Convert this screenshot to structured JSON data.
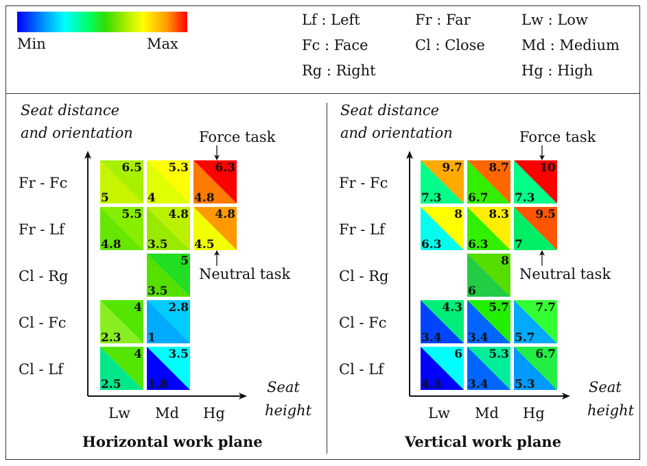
{
  "legend": {
    "min_label": "Min",
    "max_label": "Max",
    "colors": [
      "#0000ff",
      "#00ffff",
      "#00ff66",
      "#ffff00",
      "#ff0000"
    ],
    "abbreviations": [
      {
        "text": "Lf : Left"
      },
      {
        "text": "Fc : Face"
      },
      {
        "text": "Rg : Right"
      },
      {
        "text": "Fr : Far"
      },
      {
        "text": "Cl : Close"
      },
      {
        "text": "Lw : Low"
      },
      {
        "text": "Md : Medium"
      },
      {
        "text": "Hg : High"
      }
    ]
  },
  "common": {
    "y_axis_line1": "Seat distance",
    "y_axis_line2": "and orientation",
    "x_axis_line1": "Seat",
    "x_axis_line2": "height",
    "rows": [
      "Fr - Fc",
      "Fr - Lf",
      "Cl - Rg",
      "Cl - Fc",
      "Cl - Lf"
    ],
    "cols": [
      "Lw",
      "Md",
      "Hg"
    ],
    "force_task": "Force task",
    "neutral_task": "Neutral task"
  },
  "panels": [
    {
      "title": "Horizontal work plane",
      "cells": [
        {
          "row": 0,
          "col": 0,
          "force": "6.5",
          "neutral": "5",
          "force_color": "#a8f000",
          "neutral_color": "#c8f400"
        },
        {
          "row": 0,
          "col": 1,
          "force": "5.3",
          "neutral": "4",
          "force_color": "#ffff00",
          "neutral_color": "#e0ff00"
        },
        {
          "row": 0,
          "col": 2,
          "force": "6.3",
          "neutral": "4.8",
          "force_color": "#ff0000",
          "neutral_color": "#ff7a00"
        },
        {
          "row": 1,
          "col": 0,
          "force": "5.5",
          "neutral": "4.8",
          "force_color": "#88ee00",
          "neutral_color": "#66e600"
        },
        {
          "row": 1,
          "col": 1,
          "force": "4.8",
          "neutral": "3.5",
          "force_color": "#bbf000",
          "neutral_color": "#99ea00"
        },
        {
          "row": 1,
          "col": 2,
          "force": "4.8",
          "neutral": "4.5",
          "force_color": "#ff9900",
          "neutral_color": "#f2ff00"
        },
        {
          "row": 2,
          "col": 1,
          "force": "5",
          "neutral": "3.5",
          "force_color": "#22dd22",
          "neutral_color": "#55e000"
        },
        {
          "row": 3,
          "col": 0,
          "force": "4",
          "neutral": "2.3",
          "force_color": "#55e600",
          "neutral_color": "#88ee22"
        },
        {
          "row": 3,
          "col": 1,
          "force": "2.8",
          "neutral": "1",
          "force_color": "#00ccff",
          "neutral_color": "#00aaff"
        },
        {
          "row": 4,
          "col": 0,
          "force": "4",
          "neutral": "2.5",
          "force_color": "#55e600",
          "neutral_color": "#00e88a"
        },
        {
          "row": 4,
          "col": 1,
          "force": "3.5",
          "neutral": "1.8",
          "force_color": "#00ffff",
          "neutral_color": "#0000ff"
        }
      ]
    },
    {
      "title": "Vertical work plane",
      "cells": [
        {
          "row": 0,
          "col": 0,
          "force": "9.7",
          "neutral": "7.3",
          "force_color": "#ffaa00",
          "neutral_color": "#00ff88"
        },
        {
          "row": 0,
          "col": 1,
          "force": "8.7",
          "neutral": "6.7",
          "force_color": "#ff6600",
          "neutral_color": "#33ee00"
        },
        {
          "row": 0,
          "col": 2,
          "force": "10",
          "neutral": "7.3",
          "force_color": "#ff0000",
          "neutral_color": "#00ff88"
        },
        {
          "row": 1,
          "col": 0,
          "force": "8",
          "neutral": "6.3",
          "force_color": "#ffff00",
          "neutral_color": "#00ffee"
        },
        {
          "row": 1,
          "col": 1,
          "force": "8.3",
          "neutral": "6.3",
          "force_color": "#ffee00",
          "neutral_color": "#33f000"
        },
        {
          "row": 1,
          "col": 2,
          "force": "9.5",
          "neutral": "7",
          "force_color": "#ff5500",
          "neutral_color": "#00ee66"
        },
        {
          "row": 2,
          "col": 1,
          "force": "8",
          "neutral": "6",
          "force_color": "#55dd00",
          "neutral_color": "#22cc44"
        },
        {
          "row": 3,
          "col": 0,
          "force": "4.3",
          "neutral": "3.4",
          "force_color": "#00ee77",
          "neutral_color": "#0044ff"
        },
        {
          "row": 3,
          "col": 1,
          "force": "5.7",
          "neutral": "3.4",
          "force_color": "#22ee00",
          "neutral_color": "#0066ff"
        },
        {
          "row": 3,
          "col": 2,
          "force": "7.7",
          "neutral": "5.7",
          "force_color": "#33ff33",
          "neutral_color": "#00aaff"
        },
        {
          "row": 4,
          "col": 0,
          "force": "6",
          "neutral": "4.3",
          "force_color": "#00ffff",
          "neutral_color": "#0000ff"
        },
        {
          "row": 4,
          "col": 1,
          "force": "5.3",
          "neutral": "3.4",
          "force_color": "#00ee99",
          "neutral_color": "#0066ff"
        },
        {
          "row": 4,
          "col": 2,
          "force": "6.7",
          "neutral": "5.3",
          "force_color": "#22ee44",
          "neutral_color": "#0099ff"
        }
      ]
    }
  ]
}
